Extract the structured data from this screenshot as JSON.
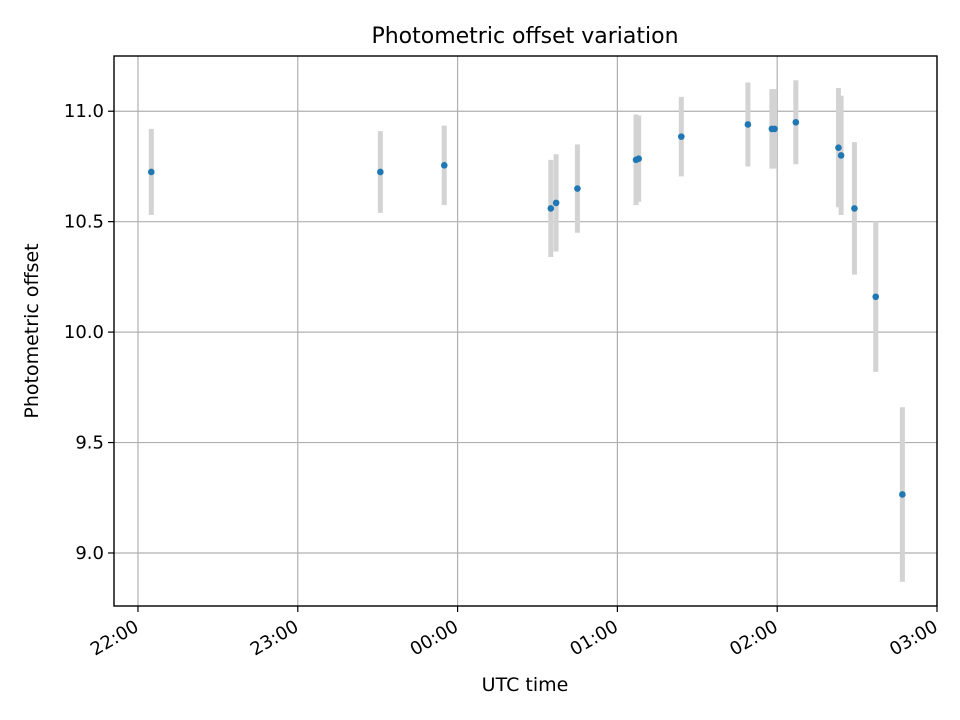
{
  "chart_data": {
    "type": "scatter",
    "title": "Photometric offset variation",
    "xlabel": "UTC time",
    "ylabel": "Photometric offset",
    "grid": true,
    "xlim": [
      "21:51",
      "03:00"
    ],
    "ylim": [
      8.76,
      11.25
    ],
    "xticks": [
      "22:00",
      "23:00",
      "00:00",
      "01:00",
      "02:00",
      "03:00"
    ],
    "yticks": [
      9.0,
      9.5,
      10.0,
      10.5,
      11.0
    ],
    "colors": {
      "marker": "#1f77b4",
      "errorbar": "#d3d3d3"
    },
    "series": [
      {
        "points": [
          {
            "x": "22:05",
            "y": 10.725,
            "err": 0.195
          },
          {
            "x": "23:31",
            "y": 10.725,
            "err": 0.185
          },
          {
            "x": "23:55",
            "y": 10.755,
            "err": 0.18
          },
          {
            "x": "00:35",
            "y": 10.56,
            "err": 0.22
          },
          {
            "x": "00:37",
            "y": 10.585,
            "err": 0.22
          },
          {
            "x": "00:45",
            "y": 10.65,
            "err": 0.2
          },
          {
            "x": "01:07",
            "y": 10.78,
            "err": 0.205
          },
          {
            "x": "01:08",
            "y": 10.785,
            "err": 0.195
          },
          {
            "x": "01:24",
            "y": 10.885,
            "err": 0.18
          },
          {
            "x": "01:49",
            "y": 10.94,
            "err": 0.19
          },
          {
            "x": "01:58",
            "y": 10.92,
            "err": 0.18
          },
          {
            "x": "01:59",
            "y": 10.92,
            "err": 0.18
          },
          {
            "x": "02:07",
            "y": 10.95,
            "err": 0.19
          },
          {
            "x": "02:23",
            "y": 10.835,
            "err": 0.27
          },
          {
            "x": "02:24",
            "y": 10.8,
            "err": 0.27
          },
          {
            "x": "02:29",
            "y": 10.56,
            "err": 0.3
          },
          {
            "x": "02:37",
            "y": 10.16,
            "err": 0.34
          },
          {
            "x": "02:47",
            "y": 9.265,
            "err": 0.395
          }
        ]
      }
    ]
  }
}
